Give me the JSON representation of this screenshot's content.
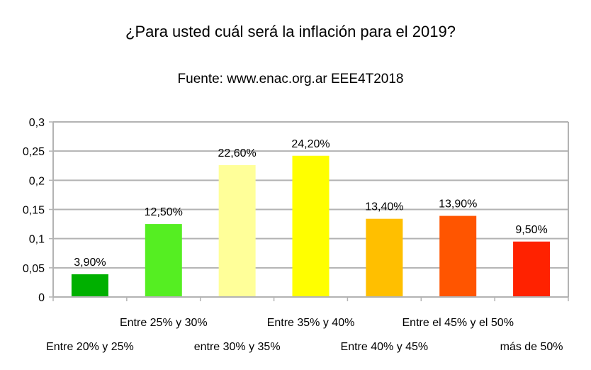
{
  "chart_data": {
    "type": "bar",
    "title": "¿Para usted cuál será la inflación para el 2019?",
    "subtitle": "Fuente: www.enac.org.ar EEE4T2018",
    "xlabel": "",
    "ylabel": "",
    "ylim": [
      0,
      0.3
    ],
    "yticks": [
      "0",
      "0,05",
      "0,1",
      "0,15",
      "0,2",
      "0,25",
      "0,3"
    ],
    "grid": true,
    "legend": "none",
    "categories": [
      "Entre 20% y 25%",
      "Entre 25% y 30%",
      "entre 30% y 35%",
      "Entre 35% y 40%",
      "Entre 40% y 45%",
      "Entre el 45% y el 50%",
      "más de 50%"
    ],
    "values": [
      0.039,
      0.125,
      0.226,
      0.242,
      0.134,
      0.139,
      0.095
    ],
    "data_labels": [
      "3,90%",
      "12,50%",
      "22,60%",
      "24,20%",
      "13,40%",
      "13,90%",
      "9,50%"
    ],
    "colors": [
      "#00b000",
      "#55ee22",
      "#ffff99",
      "#ffff00",
      "#ffbf00",
      "#ff5500",
      "#ff2200"
    ]
  }
}
